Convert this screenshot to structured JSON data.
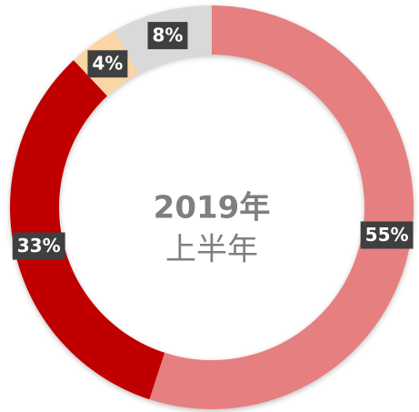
{
  "chart_data": {
    "type": "donut",
    "title": "2019年",
    "subtitle": "上半年",
    "categories": [
      null,
      null,
      null,
      null
    ],
    "values": [
      55,
      33,
      4,
      8
    ],
    "value_labels": [
      "55%",
      "33%",
      "4%",
      "8%"
    ],
    "colors": [
      "#e57f80",
      "#c00000",
      "#fcd5a5",
      "#d9d9d9"
    ]
  }
}
